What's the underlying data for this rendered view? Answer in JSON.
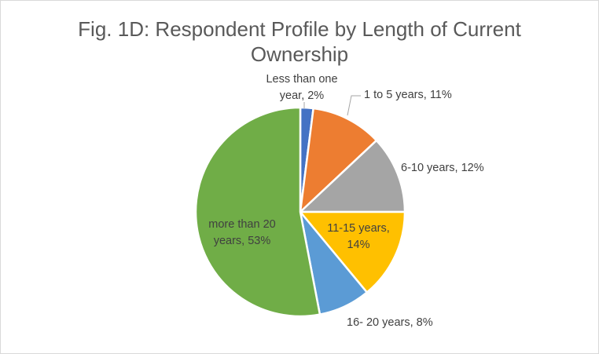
{
  "chart_data": {
    "type": "pie",
    "title": "Fig. 1D: Respondent Profile by Length of Current Ownership",
    "slices": [
      {
        "name": "Less than one year",
        "value": 2,
        "color": "#4472C4",
        "label_lines": [
          "Less than one",
          "year, 2%"
        ]
      },
      {
        "name": "1 to 5 years",
        "value": 11,
        "color": "#ED7D31",
        "label_lines": [
          "1 to 5 years, 11%"
        ]
      },
      {
        "name": "6-10 years",
        "value": 12,
        "color": "#A5A5A5",
        "label_lines": [
          "6-10 years, 12%"
        ]
      },
      {
        "name": "11-15 years",
        "value": 14,
        "color": "#FFC000",
        "label_lines": [
          "11-15 years,",
          "14%"
        ]
      },
      {
        "name": "16- 20 years",
        "value": 8,
        "color": "#5B9BD5",
        "label_lines": [
          "16- 20 years, 8%"
        ]
      },
      {
        "name": "more than 20 years",
        "value": 53,
        "color": "#70AD47",
        "label_lines": [
          "more than 20",
          "years, 53%"
        ]
      }
    ],
    "start_angle_deg": 0,
    "direction": "clockwise",
    "legend": "none",
    "data_labels": "category name and percentage"
  }
}
